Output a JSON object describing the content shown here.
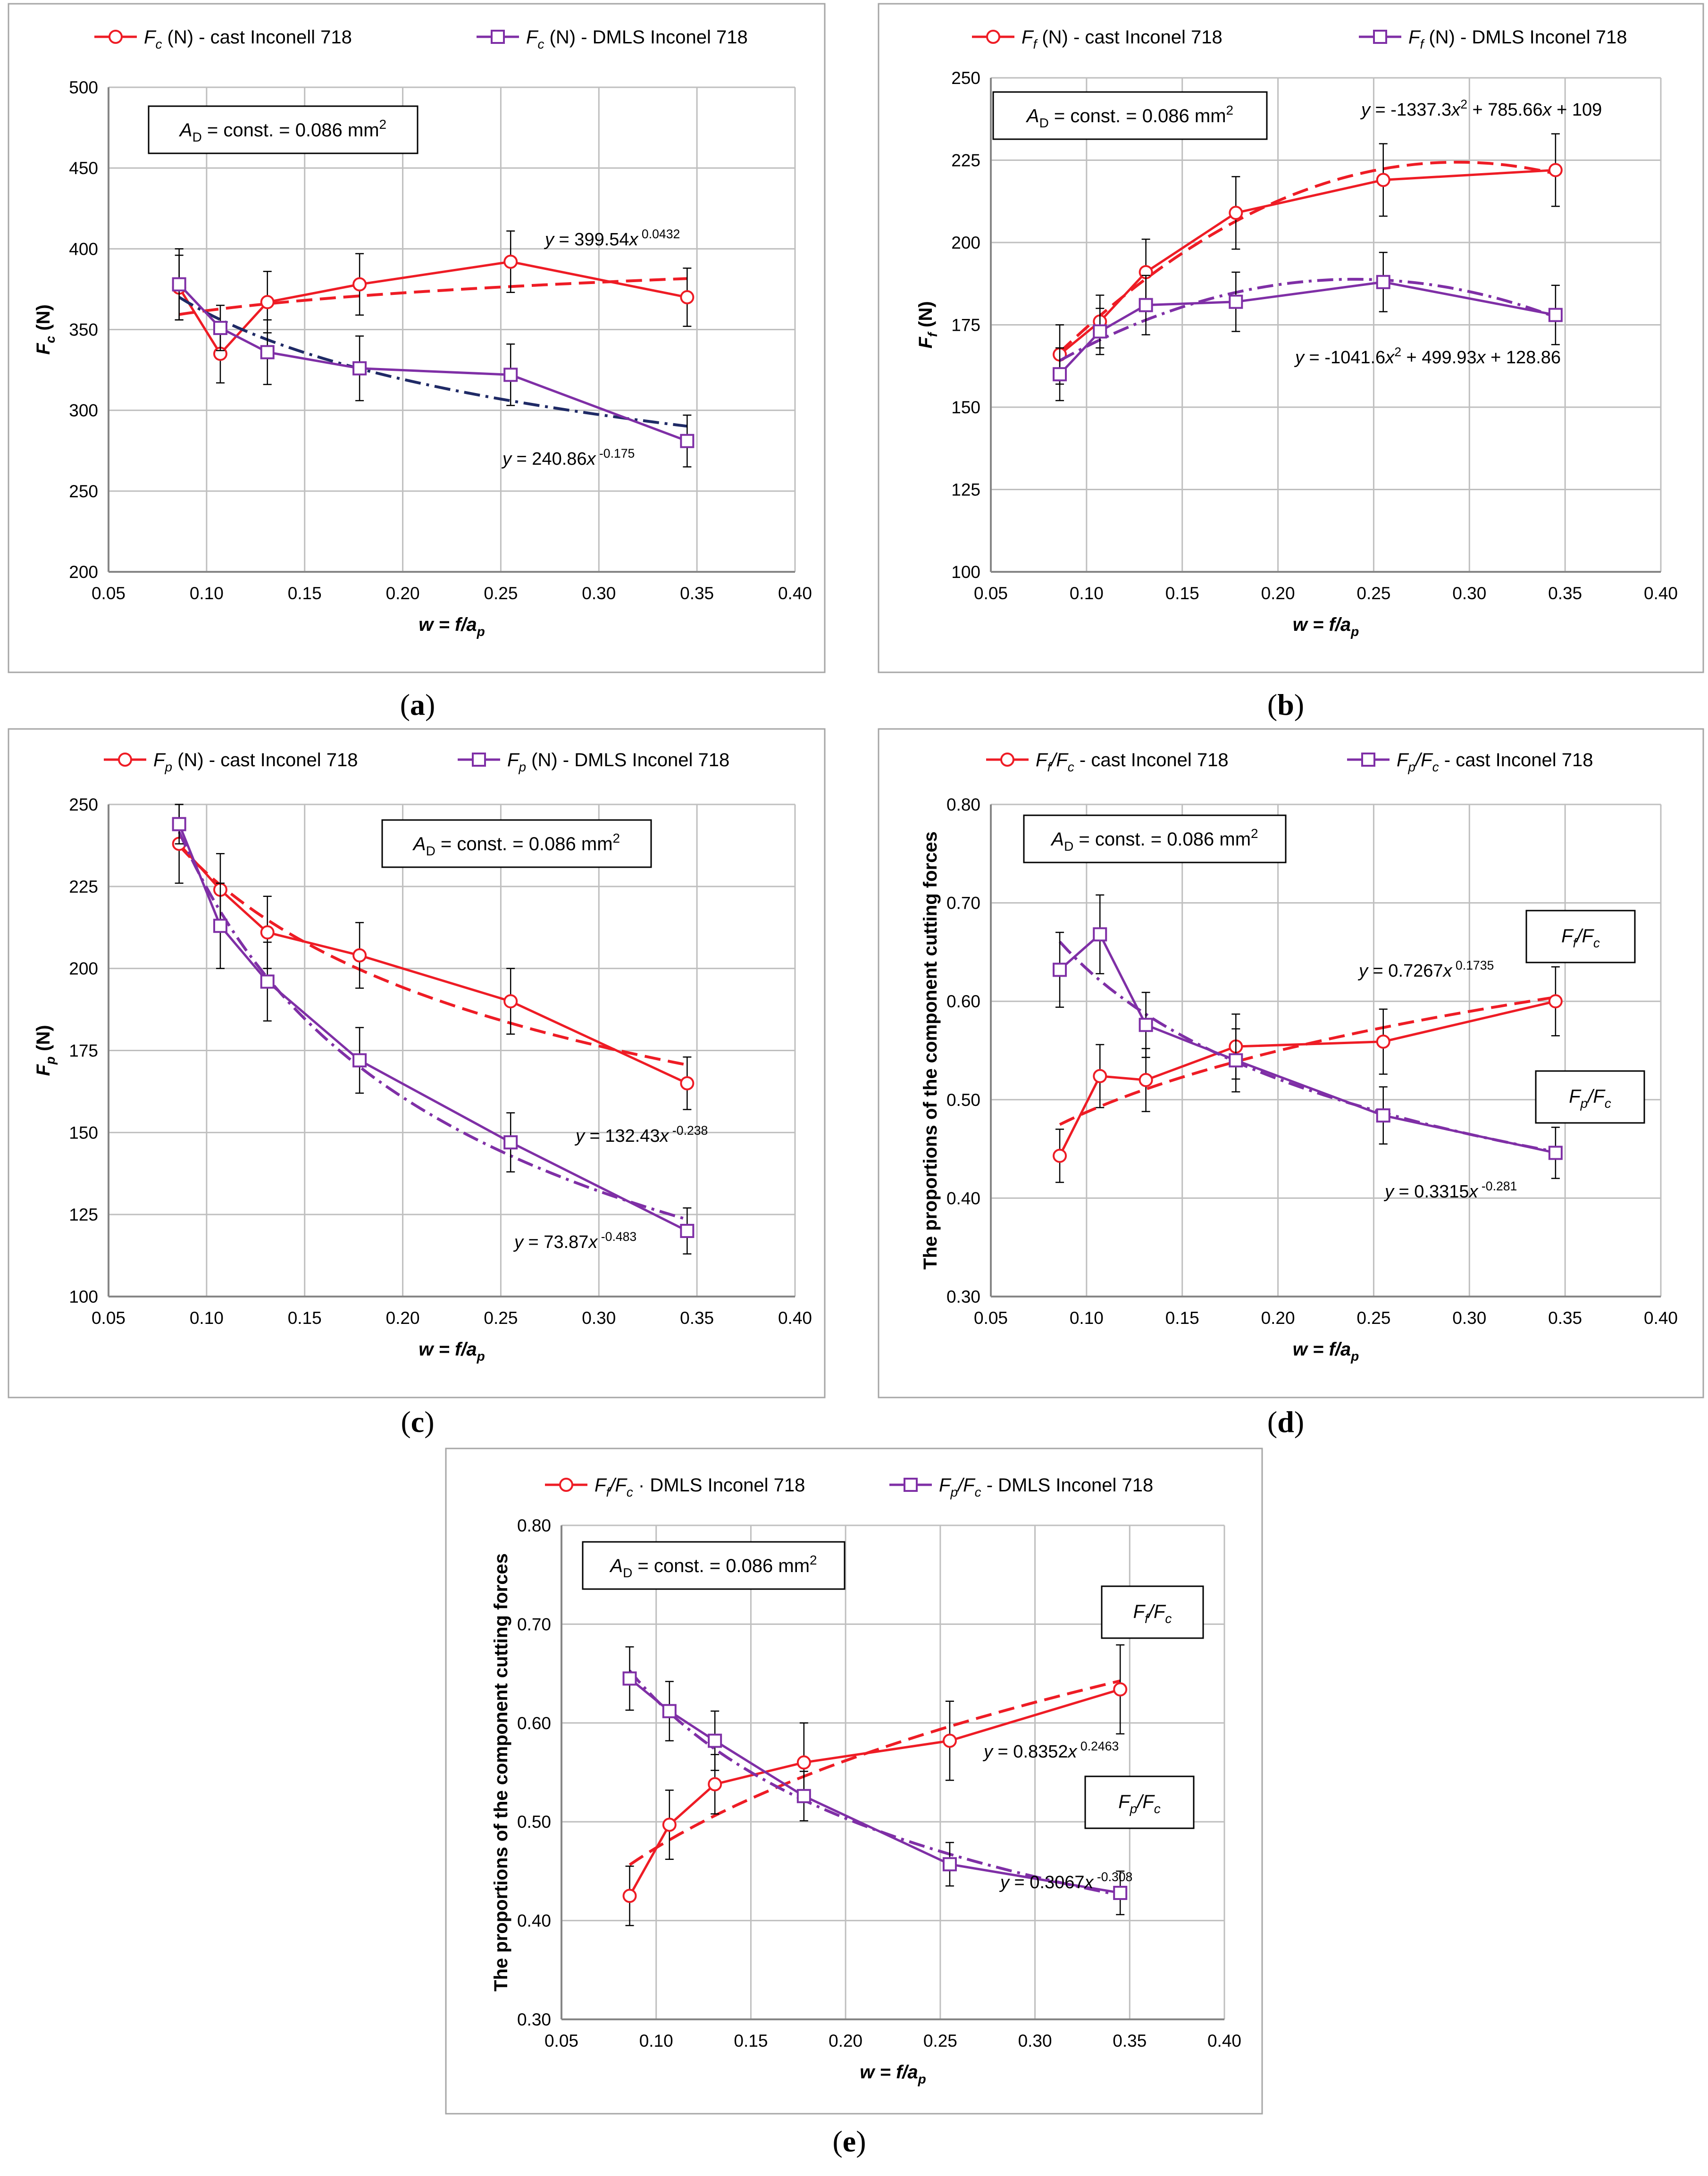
{
  "colors": {
    "cast": "#ee1c25",
    "dmls": "#7f2fa6",
    "fit_dark": "#1f2a66",
    "grid": "#bfbfbf",
    "axis": "#868686",
    "frame": "#a6a6a6",
    "text": "#000000"
  },
  "chart_data": [
    {
      "id": "a",
      "caption": "(a)",
      "type": "line",
      "ylabel": "Fc (N)",
      "xlabel": "w = f/ap",
      "xlim": [
        0.05,
        0.4
      ],
      "ylim": [
        200,
        500
      ],
      "xticks": [
        "0.05",
        "0.10",
        "0.15",
        "0.20",
        "0.25",
        "0.30",
        "0.35",
        "0.40"
      ],
      "yticks": [
        "200",
        "250",
        "300",
        "350",
        "400",
        "450",
        "500"
      ],
      "annotation_box": {
        "text": "AD = const. = 0.086 mm2"
      },
      "series": [
        {
          "name": "Fc (N) - cast Inconell 718",
          "color_key": "cast",
          "marker": "circle",
          "x": [
            0.086,
            0.107,
            0.131,
            0.178,
            0.255,
            0.345
          ],
          "y": [
            376,
            335,
            367,
            378,
            392,
            370
          ],
          "err": [
            20,
            18,
            19,
            19,
            19,
            18
          ],
          "fit": {
            "kind": "power",
            "a": 399.54,
            "b": 0.0432,
            "dash": "dash",
            "color_key": "cast",
            "label": "y = 399.54x 0.0432"
          }
        },
        {
          "name": "Fc (N) - DMLS Inconel 718",
          "color_key": "dmls",
          "marker": "square",
          "x": [
            0.086,
            0.107,
            0.131,
            0.178,
            0.255,
            0.345
          ],
          "y": [
            378,
            351,
            336,
            326,
            322,
            281
          ],
          "err": [
            22,
            14,
            20,
            20,
            19,
            16
          ],
          "fit": {
            "kind": "power",
            "a": 240.86,
            "b": -0.175,
            "dash": "dashdot",
            "color_key": "fit_dark",
            "label": "y = 240.86x -0.175"
          }
        }
      ]
    },
    {
      "id": "b",
      "caption": "(b)",
      "type": "line",
      "ylabel": "Ff (N)",
      "xlabel": "w = f/ap",
      "xlim": [
        0.05,
        0.4
      ],
      "ylim": [
        100,
        250
      ],
      "xticks": [
        "0.05",
        "0.10",
        "0.15",
        "0.20",
        "0.25",
        "0.30",
        "0.35",
        "0.40"
      ],
      "yticks": [
        "100",
        "125",
        "150",
        "175",
        "200",
        "225",
        "250"
      ],
      "annotation_box": {
        "text": "AD = const. = 0.086 mm2"
      },
      "series": [
        {
          "name": "Ff (N) - cast Inconel 718",
          "color_key": "cast",
          "marker": "circle",
          "x": [
            0.086,
            0.107,
            0.131,
            0.178,
            0.255,
            0.345
          ],
          "y": [
            166,
            176,
            191,
            209,
            219,
            222
          ],
          "err": [
            9,
            8,
            10,
            11,
            11,
            11
          ],
          "fit": {
            "kind": "poly2",
            "a": -1337.3,
            "b": 785.66,
            "c": 109,
            "dash": "dash",
            "color_key": "cast",
            "label": "y = -1337.3x2 + 785.66x + 109"
          }
        },
        {
          "name": "Ff (N) - DMLS Inconel 718",
          "color_key": "dmls",
          "marker": "square",
          "x": [
            0.086,
            0.107,
            0.131,
            0.178,
            0.255,
            0.345
          ],
          "y": [
            160,
            173,
            181,
            182,
            188,
            178
          ],
          "err": [
            8,
            7,
            9,
            9,
            9,
            9
          ],
          "fit": {
            "kind": "poly2",
            "a": -1041.6,
            "b": 499.93,
            "c": 128.86,
            "dash": "dashdot",
            "color_key": "dmls",
            "label": "y = -1041.6x2 + 499.93x + 128.86"
          }
        }
      ]
    },
    {
      "id": "c",
      "caption": "(c)",
      "type": "line",
      "ylabel": "Fp (N)",
      "xlabel": "w = f/ap",
      "xlim": [
        0.05,
        0.4
      ],
      "ylim": [
        100,
        250
      ],
      "xticks": [
        "0.05",
        "0.10",
        "0.15",
        "0.20",
        "0.25",
        "0.30",
        "0.35",
        "0.40"
      ],
      "yticks": [
        "100",
        "125",
        "150",
        "175",
        "200",
        "225",
        "250"
      ],
      "annotation_box": {
        "text": "AD = const. = 0.086 mm2"
      },
      "series": [
        {
          "name": "Fp (N) - cast Inconel 718",
          "color_key": "cast",
          "marker": "circle",
          "x": [
            0.086,
            0.107,
            0.131,
            0.178,
            0.255,
            0.345
          ],
          "y": [
            238,
            224,
            211,
            204,
            190,
            165
          ],
          "err": [
            12,
            11,
            11,
            10,
            10,
            8
          ],
          "fit": {
            "kind": "power",
            "a": 132.43,
            "b": -0.238,
            "dash": "dash",
            "color_key": "cast",
            "label": "y = 132.43x -0.238"
          }
        },
        {
          "name": "Fp (N) - DMLS Inconel 718",
          "color_key": "dmls",
          "marker": "square",
          "x": [
            0.086,
            0.107,
            0.131,
            0.178,
            0.255,
            0.345
          ],
          "y": [
            244,
            213,
            196,
            172,
            147,
            120
          ],
          "err": [
            6,
            13,
            12,
            10,
            9,
            7
          ],
          "fit": {
            "kind": "power",
            "a": 73.87,
            "b": -0.483,
            "dash": "dashdot",
            "color_key": "dmls",
            "label": "y = 73.87x -0.483"
          }
        }
      ]
    },
    {
      "id": "d",
      "caption": "(d)",
      "type": "line",
      "ylabel": "The proportions of the component cutting forces",
      "xlabel": "w = f/ap",
      "xlim": [
        0.05,
        0.4
      ],
      "ylim": [
        0.3,
        0.8
      ],
      "xticks": [
        "0.05",
        "0.10",
        "0.15",
        "0.20",
        "0.25",
        "0.30",
        "0.35",
        "0.40"
      ],
      "yticks": [
        "0.30",
        "0.40",
        "0.50",
        "0.60",
        "0.70",
        "0.80"
      ],
      "annotation_box": {
        "text": "AD = const. = 0.086 mm2"
      },
      "series": [
        {
          "name": "Ff/Fc - cast Inconel 718",
          "color_key": "cast",
          "marker": "circle",
          "x": [
            0.086,
            0.107,
            0.131,
            0.178,
            0.255,
            0.345
          ],
          "y": [
            0.443,
            0.524,
            0.52,
            0.554,
            0.559,
            0.6
          ],
          "err": [
            0.027,
            0.032,
            0.032,
            0.033,
            0.033,
            0.035
          ],
          "fit": {
            "kind": "power",
            "a": 0.7267,
            "b": 0.1735,
            "dash": "dash",
            "color_key": "cast",
            "label": "y = 0.7267x 0.1735"
          },
          "tag": "Ff/Fc"
        },
        {
          "name": "Fp/Fc - cast Inconel 718",
          "color_key": "dmls",
          "marker": "square",
          "x": [
            0.086,
            0.107,
            0.131,
            0.178,
            0.255,
            0.345
          ],
          "y": [
            0.632,
            0.668,
            0.576,
            0.54,
            0.484,
            0.446
          ],
          "err": [
            0.038,
            0.04,
            0.033,
            0.032,
            0.029,
            0.026
          ],
          "fit": {
            "kind": "power",
            "a": 0.3315,
            "b": -0.281,
            "dash": "dashdot",
            "color_key": "dmls",
            "label": "y = 0.3315x -0.281"
          },
          "tag": "Fp/Fc"
        }
      ]
    },
    {
      "id": "e",
      "caption": "(e)",
      "type": "line",
      "ylabel": "The proportions of the component cutting forces",
      "xlabel": "w = f/ap",
      "xlim": [
        0.05,
        0.4
      ],
      "ylim": [
        0.3,
        0.8
      ],
      "xticks": [
        "0.05",
        "0.10",
        "0.15",
        "0.20",
        "0.25",
        "0.30",
        "0.35",
        "0.40"
      ],
      "yticks": [
        "0.30",
        "0.40",
        "0.50",
        "0.60",
        "0.70",
        "0.80"
      ],
      "annotation_box": {
        "text": "AD = const. = 0.086 mm2"
      },
      "series": [
        {
          "name": "Ff/Fc · DMLS Inconel 718",
          "color_key": "cast",
          "marker": "circle",
          "x": [
            0.086,
            0.107,
            0.131,
            0.178,
            0.255,
            0.345
          ],
          "y": [
            0.425,
            0.497,
            0.538,
            0.56,
            0.582,
            0.634
          ],
          "err": [
            0.03,
            0.035,
            0.03,
            0.04,
            0.04,
            0.045
          ],
          "fit": {
            "kind": "power",
            "a": 0.8352,
            "b": 0.2463,
            "dash": "dash",
            "color_key": "cast",
            "label": "y = 0.8352x0.2463"
          },
          "tag": "Ff/Fc"
        },
        {
          "name": "Fp/Fc - DMLS Inconel 718",
          "color_key": "dmls",
          "marker": "square",
          "x": [
            0.086,
            0.107,
            0.131,
            0.178,
            0.255,
            0.345
          ],
          "y": [
            0.645,
            0.612,
            0.582,
            0.526,
            0.457,
            0.428
          ],
          "err": [
            0.032,
            0.03,
            0.03,
            0.025,
            0.022,
            0.022
          ],
          "fit": {
            "kind": "power",
            "a": 0.3067,
            "b": -0.308,
            "dash": "dashdot",
            "color_key": "dmls",
            "label": "y = 0.3067x -0.308"
          },
          "tag": "Fp/Fc"
        }
      ]
    }
  ]
}
